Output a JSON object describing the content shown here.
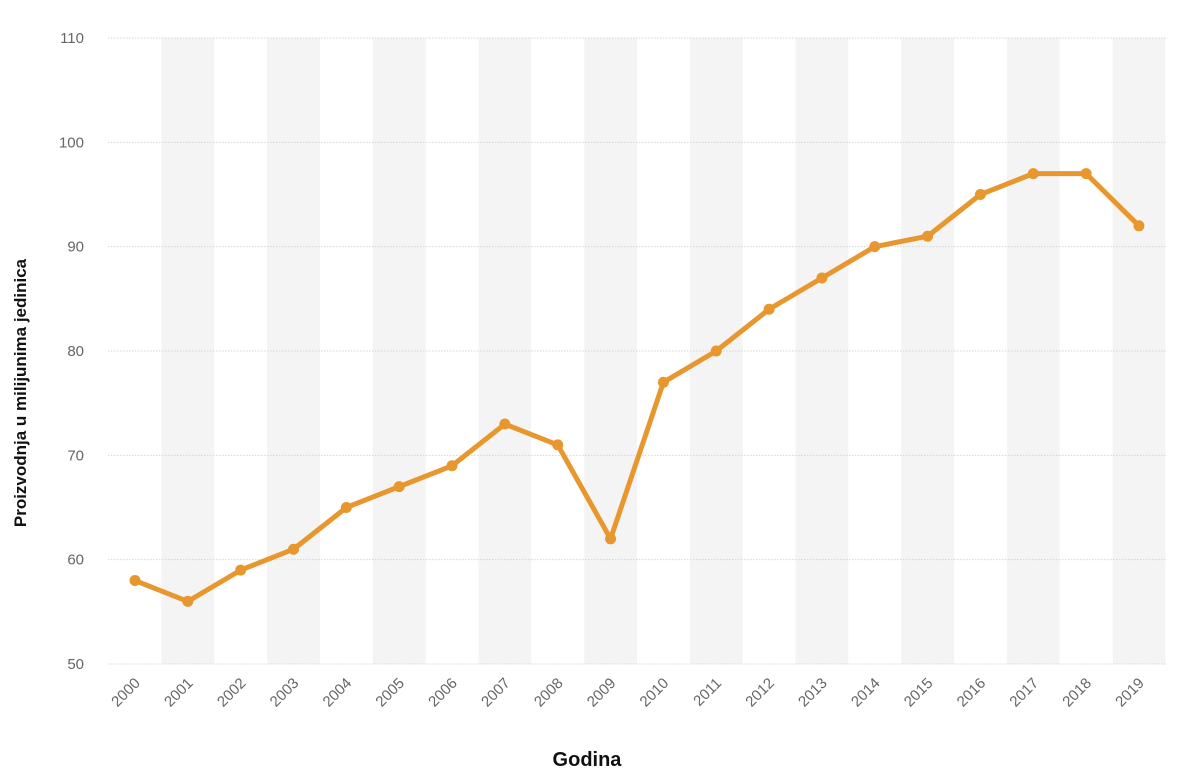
{
  "chart_data": {
    "type": "line",
    "title": "",
    "xlabel": "Godina",
    "ylabel": "Proizvodnja u milijunima jedinica",
    "categories": [
      "2000",
      "2001",
      "2002",
      "2003",
      "2004",
      "2005",
      "2006",
      "2007",
      "2008",
      "2009",
      "2010",
      "2011",
      "2012",
      "2013",
      "2014",
      "2015",
      "2016",
      "2017",
      "2018",
      "2019"
    ],
    "series": [
      {
        "values": [
          58,
          56,
          59,
          61,
          65,
          67,
          69,
          73,
          71,
          62,
          77,
          80,
          84,
          87,
          90,
          91,
          95,
          97,
          97,
          92
        ]
      }
    ],
    "yticks": [
      "50",
      "60",
      "70",
      "80",
      "90",
      "100",
      "110"
    ],
    "ylim": [
      50,
      110
    ],
    "grid": true,
    "alternating_column_bands": true,
    "colors": {
      "line": "#E8962E",
      "band": "#F4F4F4",
      "grid": "#D5D5D5"
    }
  }
}
